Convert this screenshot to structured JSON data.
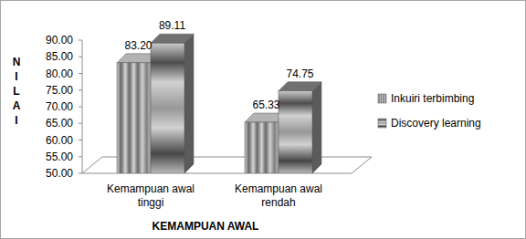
{
  "chart_data": {
    "type": "bar",
    "categories": [
      "Kemampuan awal tinggi",
      "Kemampuan awal rendah"
    ],
    "series": [
      {
        "name": "Inkuiri terbimbing",
        "color": "#a0a0a0",
        "values": [
          83.2,
          65.33
        ],
        "value_labels": [
          "83.20",
          "65.33"
        ]
      },
      {
        "name": "Discovery learning",
        "color": "#8c8c8c",
        "values": [
          89.11,
          74.75
        ],
        "value_labels": [
          "89.11",
          "74.75"
        ]
      }
    ],
    "y_label": "NILAI",
    "x_label": "KEMAMPUAN AWAL",
    "ylim": [
      50,
      90
    ],
    "yticks": [
      {
        "value": 50,
        "label": "50.00"
      },
      {
        "value": 55,
        "label": "55.00"
      },
      {
        "value": 60,
        "label": "60.00"
      },
      {
        "value": 65,
        "label": "65.00"
      },
      {
        "value": 70,
        "label": "70.00"
      },
      {
        "value": 75,
        "label": "75.00"
      },
      {
        "value": 80,
        "label": "80.00"
      },
      {
        "value": 85,
        "label": "85.00"
      },
      {
        "value": 90,
        "label": "90.00"
      }
    ],
    "grid": false,
    "legend": "right",
    "data_labels": true
  }
}
